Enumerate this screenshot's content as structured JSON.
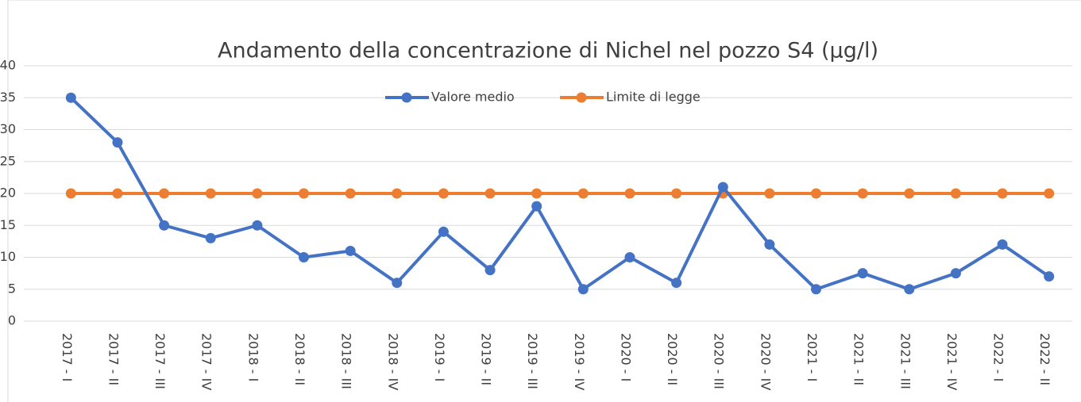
{
  "chart_data": {
    "type": "line",
    "title": "Andamento della concentrazione di Nichel nel pozzo S4 (µg/l)",
    "categories": [
      "2017 - I",
      "2017 - II",
      "2017 - III",
      "2017 - IV",
      "2018 - I",
      "2018 - II",
      "2018 - III",
      "2018 - IV",
      "2019 - I",
      "2019 - II",
      "2019 - III",
      "2019 - IV",
      "2020 - I",
      "2020 - II",
      "2020 - III",
      "2020 - IV",
      "2021 - I",
      "2021 - II",
      "2021 - III",
      "2021 - IV",
      "2022 - I",
      "2022 - II"
    ],
    "series": [
      {
        "name": "Valore medio",
        "color": "#4472c4",
        "values": [
          35,
          28,
          15,
          13,
          15,
          10,
          11,
          6,
          14,
          8,
          18,
          5,
          10,
          6,
          21,
          12,
          5,
          7.5,
          5,
          7.5,
          12,
          7
        ]
      },
      {
        "name": "Limite di legge",
        "color": "#ed7d31",
        "values": [
          20,
          20,
          20,
          20,
          20,
          20,
          20,
          20,
          20,
          20,
          20,
          20,
          20,
          20,
          20,
          20,
          20,
          20,
          20,
          20,
          20,
          20
        ]
      }
    ],
    "ylim": [
      0,
      40
    ],
    "yticks": [
      0,
      5,
      10,
      15,
      20,
      25,
      30,
      35,
      40
    ],
    "grid": true,
    "legend": "top"
  }
}
